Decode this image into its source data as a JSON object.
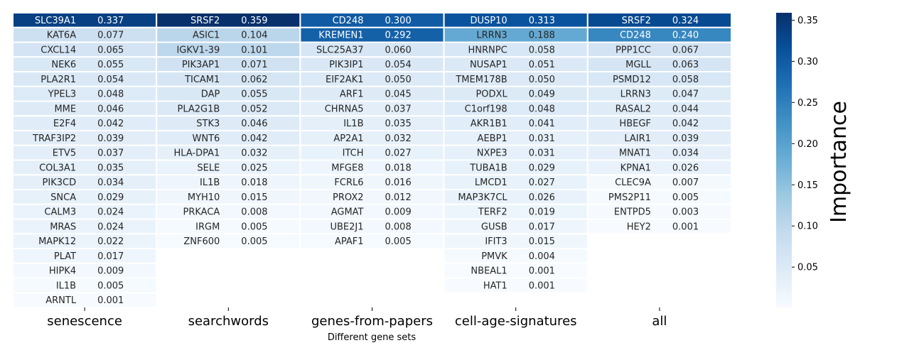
{
  "chart_data": {
    "type": "heatmap",
    "xlabel": "Different gene sets",
    "colorbar": {
      "label": "Importance",
      "range": [
        0.001,
        0.359
      ],
      "ticks": [
        "0.05",
        "0.10",
        "0.15",
        "0.20",
        "0.25",
        "0.30",
        "0.35"
      ],
      "colormap": "Blues"
    },
    "columns": [
      {
        "name": "senescence",
        "cells": [
          {
            "gene": "SLC39A1",
            "value": 0.337
          },
          {
            "gene": "KAT6A",
            "value": 0.077
          },
          {
            "gene": "CXCL14",
            "value": 0.065
          },
          {
            "gene": "NEK6",
            "value": 0.055
          },
          {
            "gene": "PLA2R1",
            "value": 0.054
          },
          {
            "gene": "YPEL3",
            "value": 0.048
          },
          {
            "gene": "MME",
            "value": 0.046
          },
          {
            "gene": "E2F4",
            "value": 0.042
          },
          {
            "gene": "TRAF3IP2",
            "value": 0.039
          },
          {
            "gene": "ETV5",
            "value": 0.037
          },
          {
            "gene": "COL3A1",
            "value": 0.035
          },
          {
            "gene": "PIK3CD",
            "value": 0.034
          },
          {
            "gene": "SNCA",
            "value": 0.029
          },
          {
            "gene": "CALM3",
            "value": 0.024
          },
          {
            "gene": "MRAS",
            "value": 0.024
          },
          {
            "gene": "MAPK12",
            "value": 0.022
          },
          {
            "gene": "PLAT",
            "value": 0.017
          },
          {
            "gene": "HIPK4",
            "value": 0.009
          },
          {
            "gene": "IL1B",
            "value": 0.005
          },
          {
            "gene": "ARNTL",
            "value": 0.001
          }
        ]
      },
      {
        "name": "searchwords",
        "cells": [
          {
            "gene": "SRSF2",
            "value": 0.359
          },
          {
            "gene": "ASIC1",
            "value": 0.104
          },
          {
            "gene": "IGKV1-39",
            "value": 0.101
          },
          {
            "gene": "PIK3AP1",
            "value": 0.071
          },
          {
            "gene": "TICAM1",
            "value": 0.062
          },
          {
            "gene": "DAP",
            "value": 0.055
          },
          {
            "gene": "PLA2G1B",
            "value": 0.052
          },
          {
            "gene": "STK3",
            "value": 0.046
          },
          {
            "gene": "WNT6",
            "value": 0.042
          },
          {
            "gene": "HLA-DPA1",
            "value": 0.032
          },
          {
            "gene": "SELE",
            "value": 0.025
          },
          {
            "gene": "IL1B",
            "value": 0.018
          },
          {
            "gene": "MYH10",
            "value": 0.015
          },
          {
            "gene": "PRKACA",
            "value": 0.008
          },
          {
            "gene": "IRGM",
            "value": 0.005
          },
          {
            "gene": "ZNF600",
            "value": 0.005
          }
        ]
      },
      {
        "name": "genes-from-papers",
        "cells": [
          {
            "gene": "CD248",
            "value": 0.3
          },
          {
            "gene": "KREMEN1",
            "value": 0.292
          },
          {
            "gene": "SLC25A37",
            "value": 0.06
          },
          {
            "gene": "PIK3IP1",
            "value": 0.054
          },
          {
            "gene": "EIF2AK1",
            "value": 0.05
          },
          {
            "gene": "ARF1",
            "value": 0.045
          },
          {
            "gene": "CHRNA5",
            "value": 0.037
          },
          {
            "gene": "IL1B",
            "value": 0.035
          },
          {
            "gene": "AP2A1",
            "value": 0.032
          },
          {
            "gene": "ITCH",
            "value": 0.027
          },
          {
            "gene": "MFGE8",
            "value": 0.018
          },
          {
            "gene": "FCRL6",
            "value": 0.016
          },
          {
            "gene": "PROX2",
            "value": 0.012
          },
          {
            "gene": "AGMAT",
            "value": 0.009
          },
          {
            "gene": "UBE2J1",
            "value": 0.008
          },
          {
            "gene": "APAF1",
            "value": 0.005
          }
        ]
      },
      {
        "name": "cell-age-signatures",
        "cells": [
          {
            "gene": "DUSP10",
            "value": 0.313
          },
          {
            "gene": "LRRN3",
            "value": 0.188
          },
          {
            "gene": "HNRNPC",
            "value": 0.058
          },
          {
            "gene": "NUSAP1",
            "value": 0.051
          },
          {
            "gene": "TMEM178B",
            "value": 0.05
          },
          {
            "gene": "PODXL",
            "value": 0.049
          },
          {
            "gene": "C1orf198",
            "value": 0.048
          },
          {
            "gene": "AKR1B1",
            "value": 0.041
          },
          {
            "gene": "AEBP1",
            "value": 0.031
          },
          {
            "gene": "NXPE3",
            "value": 0.031
          },
          {
            "gene": "TUBA1B",
            "value": 0.029
          },
          {
            "gene": "LMCD1",
            "value": 0.027
          },
          {
            "gene": "MAP3K7CL",
            "value": 0.026
          },
          {
            "gene": "TERF2",
            "value": 0.019
          },
          {
            "gene": "GUSB",
            "value": 0.017
          },
          {
            "gene": "IFIT3",
            "value": 0.015
          },
          {
            "gene": "PMVK",
            "value": 0.004
          },
          {
            "gene": "NBEAL1",
            "value": 0.001
          },
          {
            "gene": "HAT1",
            "value": 0.001
          }
        ]
      },
      {
        "name": "all",
        "cells": [
          {
            "gene": "SRSF2",
            "value": 0.324
          },
          {
            "gene": "CD248",
            "value": 0.24
          },
          {
            "gene": "PPP1CC",
            "value": 0.067
          },
          {
            "gene": "MGLL",
            "value": 0.063
          },
          {
            "gene": "PSMD12",
            "value": 0.058
          },
          {
            "gene": "LRRN3",
            "value": 0.047
          },
          {
            "gene": "RASAL2",
            "value": 0.044
          },
          {
            "gene": "HBEGF",
            "value": 0.042
          },
          {
            "gene": "LAIR1",
            "value": 0.039
          },
          {
            "gene": "MNAT1",
            "value": 0.034
          },
          {
            "gene": "KPNA1",
            "value": 0.026
          },
          {
            "gene": "CLEC9A",
            "value": 0.007
          },
          {
            "gene": "PMS2P11",
            "value": 0.005
          },
          {
            "gene": "ENTPD5",
            "value": 0.003
          },
          {
            "gene": "HEY2",
            "value": 0.001
          }
        ]
      }
    ]
  }
}
